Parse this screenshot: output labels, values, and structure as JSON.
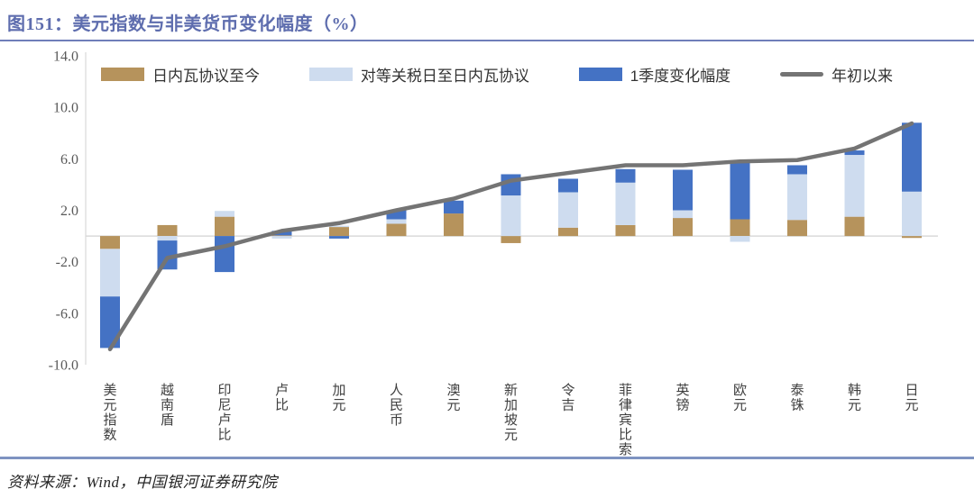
{
  "header": {
    "title": "图151：美元指数与非美货币变化幅度（%）"
  },
  "footer": {
    "source": "资料来源：Wind，中国银河证券研究院"
  },
  "colors": {
    "title": "#5e6dae",
    "top_rule": "#6f7eb9",
    "bottom_rule": "#7e93c1",
    "geneva_tan": "#b6935c",
    "tariff_lightblue": "#cedcef",
    "q1_blue": "#4472c4",
    "ytd_line_gray": "#747474",
    "axis_text": "#595959",
    "gridline": "#d9d9d9"
  },
  "legend": [
    {
      "label": "日内瓦协议至今",
      "color": "#b6935c",
      "type": "box"
    },
    {
      "label": "对等关税日至日内瓦协议",
      "color": "#cedcef",
      "type": "box"
    },
    {
      "label": "1季度变化幅度",
      "color": "#4472c4",
      "type": "box"
    },
    {
      "label": "年初以来",
      "color": "#747474",
      "type": "line"
    }
  ],
  "chart_data": {
    "type": "bar",
    "stacked": true,
    "title": "美元指数与非美货币变化幅度（%）",
    "figure_label": "图151",
    "unit": "%",
    "xlabel": "",
    "ylabel": "",
    "ylim": [
      -10,
      14
    ],
    "y_ticks": [
      14.0,
      10.0,
      6.0,
      2.0,
      -2.0,
      -6.0,
      -10.0
    ],
    "grid": "zero-line-only",
    "legend_position": "top",
    "categories": [
      "美元指数",
      "越南盾",
      "印尼卢比",
      "卢比",
      "加元",
      "人民币",
      "澳元",
      "新加坡元",
      "令吉",
      "菲律宾比索",
      "英镑",
      "欧元",
      "泰铢",
      "韩元",
      "日元"
    ],
    "series": [
      {
        "name": "日内瓦协议至今",
        "color": "#b6935c",
        "values": [
          -1.0,
          0.85,
          1.5,
          0.05,
          0.7,
          0.95,
          1.75,
          -0.55,
          0.65,
          0.85,
          1.4,
          1.3,
          1.25,
          1.5,
          -0.15
        ]
      },
      {
        "name": "对等关税日至日内瓦协议",
        "color": "#cedcef",
        "values": [
          -3.7,
          -0.35,
          0.45,
          -0.2,
          0.1,
          0.35,
          0.0,
          3.15,
          2.75,
          3.3,
          0.6,
          -0.45,
          3.55,
          4.8,
          3.45
        ]
      },
      {
        "name": "1季度变化幅度",
        "color": "#4472c4",
        "values": [
          -4.0,
          -2.25,
          -2.8,
          0.35,
          -0.2,
          0.7,
          1.0,
          1.65,
          1.05,
          1.05,
          3.15,
          4.5,
          0.7,
          0.35,
          5.35
        ]
      }
    ],
    "line_series": {
      "name": "年初以来",
      "color": "#747474",
      "values": [
        -8.8,
        -1.7,
        -0.8,
        0.4,
        1.0,
        2.0,
        2.9,
        4.3,
        4.9,
        5.5,
        5.5,
        5.8,
        5.9,
        6.8,
        8.75
      ]
    }
  }
}
